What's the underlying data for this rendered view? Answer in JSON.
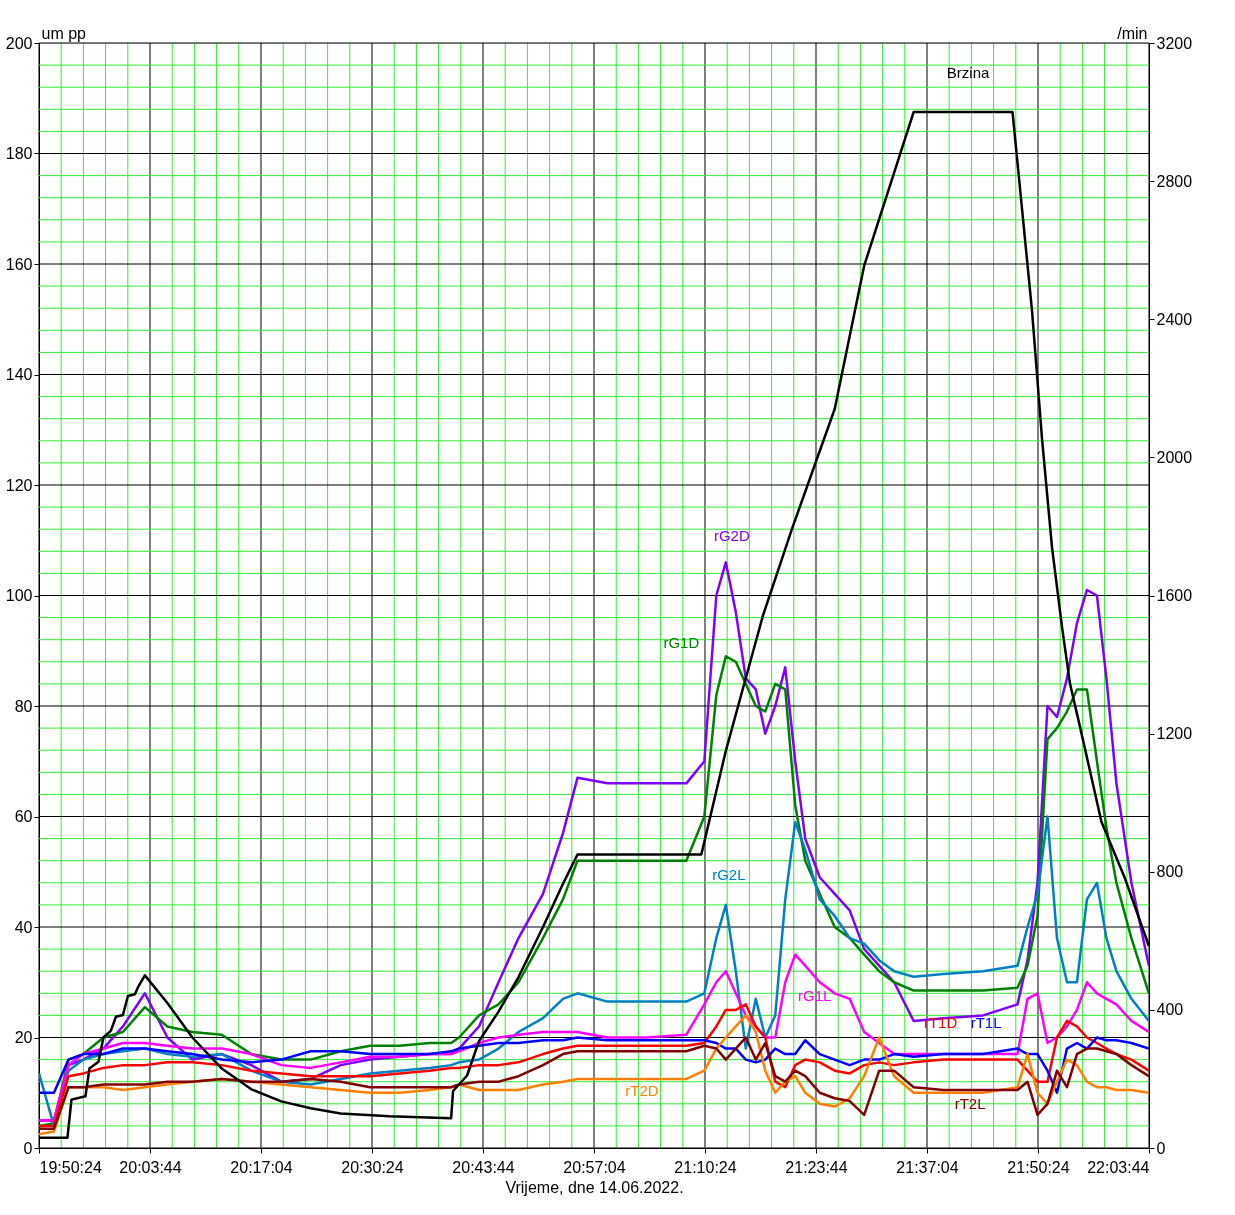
{
  "chart_data": {
    "type": "line",
    "xlabel": "Vrijeme, dne 14.06.2022.",
    "ylabel": "um pp",
    "y2label": "/min",
    "xlim": [
      19.84,
      22.062222
    ],
    "xticks": [
      {
        "value": 19.84,
        "label": "19:50:24"
      },
      {
        "value": 19.8844,
        "label": null
      },
      {
        "value": 19.9289,
        "label": null
      },
      {
        "value": 19.9733,
        "label": null
      },
      {
        "value": 20.0178,
        "label": null
      },
      {
        "value": 20.062222,
        "label": "20:03:44"
      },
      {
        "value": 20.1067,
        "label": null
      },
      {
        "value": 20.1511,
        "label": null
      },
      {
        "value": 20.1956,
        "label": null
      },
      {
        "value": 20.24,
        "label": null
      },
      {
        "value": 20.284444,
        "label": "20:17:04"
      },
      {
        "value": 20.3289,
        "label": null
      },
      {
        "value": 20.3733,
        "label": null
      },
      {
        "value": 20.4178,
        "label": null
      },
      {
        "value": 20.4622,
        "label": null
      },
      {
        "value": 20.506667,
        "label": "20:30:24"
      },
      {
        "value": 20.5511,
        "label": null
      },
      {
        "value": 20.5956,
        "label": null
      },
      {
        "value": 20.64,
        "label": null
      },
      {
        "value": 20.6844,
        "label": null
      },
      {
        "value": 20.728889,
        "label": "20:43:44"
      },
      {
        "value": 20.7733,
        "label": null
      },
      {
        "value": 20.8178,
        "label": null
      },
      {
        "value": 20.8622,
        "label": null
      },
      {
        "value": 20.9067,
        "label": null
      },
      {
        "value": 20.951111,
        "label": "20:57:04"
      },
      {
        "value": 20.9956,
        "label": null
      },
      {
        "value": 21.04,
        "label": null
      },
      {
        "value": 21.0844,
        "label": null
      },
      {
        "value": 21.1289,
        "label": null
      },
      {
        "value": 21.173333,
        "label": "21:10:24"
      },
      {
        "value": 21.2178,
        "label": null
      },
      {
        "value": 21.2622,
        "label": null
      },
      {
        "value": 21.3067,
        "label": null
      },
      {
        "value": 21.3511,
        "label": null
      },
      {
        "value": 21.395556,
        "label": "21:23:44"
      },
      {
        "value": 21.44,
        "label": null
      },
      {
        "value": 21.4844,
        "label": null
      },
      {
        "value": 21.5289,
        "label": null
      },
      {
        "value": 21.5733,
        "label": null
      },
      {
        "value": 21.617778,
        "label": "21:37:04"
      },
      {
        "value": 21.6622,
        "label": null
      },
      {
        "value": 21.7067,
        "label": null
      },
      {
        "value": 21.7511,
        "label": null
      },
      {
        "value": 21.7956,
        "label": null
      },
      {
        "value": 21.84,
        "label": "21:50:24"
      },
      {
        "value": 21.8844,
        "label": null
      },
      {
        "value": 21.9289,
        "label": null
      },
      {
        "value": 21.9733,
        "label": null
      },
      {
        "value": 22.0178,
        "label": null
      },
      {
        "value": 22.062222,
        "label": "22:03:44"
      }
    ],
    "ylim": [
      0,
      200
    ],
    "yticks": [
      0,
      {
        "value": 4,
        "label": null
      },
      {
        "value": 8,
        "label": null
      },
      {
        "value": 12,
        "label": null
      },
      {
        "value": 16,
        "label": null
      },
      20,
      {
        "value": 24,
        "label": null
      },
      {
        "value": 28,
        "label": null
      },
      {
        "value": 32,
        "label": null
      },
      {
        "value": 36,
        "label": null
      },
      40,
      {
        "value": 44,
        "label": null
      },
      {
        "value": 48,
        "label": null
      },
      {
        "value": 52,
        "label": null
      },
      {
        "value": 56,
        "label": null
      },
      60,
      {
        "value": 64,
        "label": null
      },
      {
        "value": 68,
        "label": null
      },
      {
        "value": 72,
        "label": null
      },
      {
        "value": 76,
        "label": null
      },
      80,
      {
        "value": 84,
        "label": null
      },
      {
        "value": 88,
        "label": null
      },
      {
        "value": 92,
        "label": null
      },
      {
        "value": 96,
        "label": null
      },
      100,
      {
        "value": 104,
        "label": null
      },
      {
        "value": 108,
        "label": null
      },
      {
        "value": 112,
        "label": null
      },
      {
        "value": 116,
        "label": null
      },
      120,
      {
        "value": 124,
        "label": null
      },
      {
        "value": 128,
        "label": null
      },
      {
        "value": 132,
        "label": null
      },
      {
        "value": 136,
        "label": null
      },
      140,
      {
        "value": 144,
        "label": null
      },
      {
        "value": 148,
        "label": null
      },
      {
        "value": 152,
        "label": null
      },
      {
        "value": 156,
        "label": null
      },
      160,
      {
        "value": 164,
        "label": null
      },
      {
        "value": 168,
        "label": null
      },
      {
        "value": 172,
        "label": null
      },
      {
        "value": 176,
        "label": null
      },
      180,
      {
        "value": 184,
        "label": null
      },
      {
        "value": 188,
        "label": null
      },
      {
        "value": 192,
        "label": null
      },
      {
        "value": 196,
        "label": null
      },
      200
    ],
    "y2lim": [
      0,
      3200
    ],
    "y2ticks": [
      0,
      400,
      800,
      1200,
      1600,
      2000,
      2400,
      2800,
      3200
    ],
    "grid": true,
    "x": [
      19.84,
      19.87,
      19.899,
      19.929,
      19.969,
      20.008,
      20.052,
      20.097,
      20.147,
      20.206,
      20.265,
      20.325,
      20.384,
      20.444,
      20.503,
      20.562,
      20.622,
      20.665,
      20.681,
      20.721,
      20.76,
      20.8,
      20.849,
      20.889,
      20.918,
      20.978,
      21.057,
      21.136,
      21.172,
      21.196,
      21.215,
      21.235,
      21.255,
      21.275,
      21.294,
      21.314,
      21.334,
      21.354,
      21.374,
      21.403,
      21.433,
      21.463,
      21.492,
      21.522,
      21.552,
      21.591,
      21.651,
      21.73,
      21.799,
      21.819,
      21.839,
      21.859,
      21.878,
      21.898,
      21.918,
      21.938,
      21.958,
      21.977,
      21.997,
      22.027,
      22.062
    ],
    "series": [
      {
        "name": "rG2D",
        "color": "#8000ff",
        "values": [
          5,
          5,
          15,
          16,
          18,
          22,
          28,
          20,
          16,
          17,
          15,
          12,
          12.5,
          15,
          16,
          16.5,
          17,
          17,
          18,
          22,
          30,
          38,
          46,
          57,
          67,
          66,
          66,
          66,
          70,
          100,
          106,
          97,
          85,
          83,
          75,
          80,
          87,
          70,
          56,
          49,
          46,
          43,
          36,
          33,
          30,
          23,
          23.5,
          24,
          26,
          34,
          48,
          80,
          78,
          85,
          95,
          101,
          100,
          85,
          66,
          48,
          33
        ]
      },
      {
        "name": "rG1D",
        "color": "#008000",
        "values": [
          4,
          4.5,
          16,
          17,
          20,
          21,
          25.5,
          22,
          21,
          20.5,
          17,
          16,
          16,
          17.5,
          18.5,
          18.5,
          19,
          19,
          20,
          24,
          26,
          30,
          38,
          45,
          52,
          52,
          52,
          52,
          60,
          82,
          89,
          88,
          84,
          80,
          79,
          84,
          83,
          62,
          52,
          46,
          40,
          38,
          35,
          32,
          30,
          28.5,
          28.5,
          28.5,
          29,
          33,
          42,
          74,
          76,
          79,
          83,
          83,
          70,
          58,
          48,
          38,
          28
        ]
      },
      {
        "name": "rG2L",
        "color": "#0080c0",
        "values": [
          13.5,
          4,
          14,
          16,
          17,
          17.5,
          18,
          17,
          16.5,
          17,
          14,
          12,
          11.5,
          12.5,
          13.5,
          14,
          14.5,
          15,
          15.5,
          16,
          18,
          21,
          23.5,
          27,
          28,
          26.5,
          26.5,
          26.5,
          28,
          38,
          44,
          32,
          18,
          27,
          20,
          24,
          45,
          59,
          54,
          45,
          42,
          38,
          37,
          34,
          32,
          31,
          31.5,
          32,
          33,
          40,
          46,
          60,
          38,
          30,
          30,
          45,
          48,
          38,
          32,
          27,
          23
        ]
      },
      {
        "name": "rG1L",
        "color": "#ff00ff",
        "values": [
          5,
          5,
          15,
          17,
          18,
          19,
          19,
          18.5,
          18,
          18,
          17,
          15,
          14.5,
          15.5,
          16.5,
          16.5,
          17,
          17,
          17.5,
          19,
          20,
          20.5,
          21,
          21,
          21,
          20,
          20,
          20.5,
          26,
          30,
          32,
          28,
          24,
          22,
          20,
          20,
          30,
          35,
          33,
          30,
          28,
          27,
          21,
          19,
          17,
          17,
          17,
          17,
          17,
          27,
          28,
          19,
          20,
          22,
          25,
          30,
          28,
          27,
          26,
          23,
          21
        ]
      },
      {
        "name": "rT1D",
        "color": "#ff0000",
        "values": [
          4,
          4,
          13,
          13.5,
          14.5,
          15,
          15,
          15.5,
          15.5,
          15,
          14,
          13.5,
          13,
          13,
          13,
          13.5,
          14,
          14.5,
          14.5,
          15,
          15,
          15.5,
          17,
          18,
          18.5,
          18.5,
          18.5,
          18.5,
          19,
          22,
          25,
          25,
          26,
          22,
          20,
          12,
          11,
          15,
          16,
          15.5,
          14,
          13.5,
          15,
          15.5,
          15,
          15.5,
          16,
          16,
          16,
          14,
          12,
          12,
          20,
          23,
          22,
          20,
          19,
          18,
          17,
          16,
          14
        ]
      },
      {
        "name": "rT1L",
        "color": "#0000ff",
        "values": [
          10,
          10,
          16,
          17,
          17,
          18,
          18,
          17.5,
          17,
          16,
          15.5,
          16,
          17.5,
          17.5,
          17,
          17,
          17,
          17.5,
          18,
          18.5,
          19,
          19,
          19.5,
          19.5,
          20,
          19.5,
          19.5,
          19.5,
          19.5,
          19,
          18,
          18,
          16,
          15.5,
          16,
          18,
          17,
          17,
          19.5,
          17,
          16,
          15,
          16,
          16,
          17,
          16.5,
          17,
          17,
          18,
          17,
          17,
          14,
          10,
          18,
          19,
          18,
          20,
          19.5,
          19.5,
          19,
          18
        ]
      },
      {
        "name": "rT2D",
        "color": "#ff8000",
        "values": [
          2.5,
          3,
          11,
          11,
          11,
          10.5,
          11,
          11.5,
          12,
          12.5,
          12,
          11.5,
          11,
          10.5,
          10,
          10,
          10.5,
          11,
          11.5,
          10.5,
          10.5,
          10.5,
          11.5,
          12,
          12.5,
          12.5,
          12.5,
          12.5,
          14,
          18,
          20,
          22,
          24,
          21,
          14,
          10,
          12,
          13,
          10,
          8,
          7.5,
          9,
          13,
          20,
          13,
          10,
          10,
          10,
          11,
          17,
          10,
          8,
          12,
          16,
          15,
          12,
          11,
          11,
          10.5,
          10.5,
          10
        ]
      },
      {
        "name": "rT2L",
        "color": "#800000",
        "values": [
          3.5,
          3.5,
          11,
          11,
          11.5,
          11.5,
          11.5,
          12,
          12,
          12.5,
          12,
          12,
          12.5,
          12,
          11,
          11,
          11,
          11,
          11.5,
          12,
          12,
          13,
          15,
          17,
          17.5,
          17.5,
          17.5,
          17.5,
          18.5,
          18,
          16,
          18,
          20,
          16,
          19,
          13,
          12,
          14,
          13,
          10,
          9,
          8.5,
          6,
          14,
          14,
          11,
          10.5,
          10.5,
          10.5,
          12,
          6,
          8,
          14,
          11,
          17,
          18,
          18,
          17.5,
          17,
          15,
          13
        ]
      },
      {
        "name": "Brzina",
        "color": "#000000",
        "axis": "y2",
        "x": [
          19.84,
          19.897,
          19.905,
          19.933,
          19.941,
          19.959,
          19.969,
          19.984,
          19.994,
          20.008,
          20.018,
          20.032,
          20.038,
          20.052,
          20.097,
          20.147,
          20.206,
          20.265,
          20.325,
          20.384,
          20.444,
          20.542,
          20.665,
          20.669,
          20.697,
          20.721,
          20.76,
          20.8,
          20.849,
          20.889,
          20.918,
          21.166,
          21.215,
          21.289,
          21.348,
          21.433,
          21.492,
          21.591,
          21.789,
          21.828,
          21.848,
          21.868,
          21.888,
          21.904,
          21.928,
          21.967,
          22.013,
          22.062
        ],
        "values": [
          30,
          30,
          140,
          150,
          230,
          250,
          320,
          340,
          380,
          385,
          440,
          445,
          465,
          500,
          420,
          320,
          230,
          170,
          135,
          115,
          100,
          92,
          86,
          165,
          210,
          310,
          395,
          495,
          640,
          765,
          850,
          850,
          1150,
          1540,
          1795,
          2140,
          2555,
          3000,
          3000,
          2425,
          2055,
          1740,
          1510,
          1345,
          1195,
          945,
          785,
          585
        ]
      }
    ]
  }
}
